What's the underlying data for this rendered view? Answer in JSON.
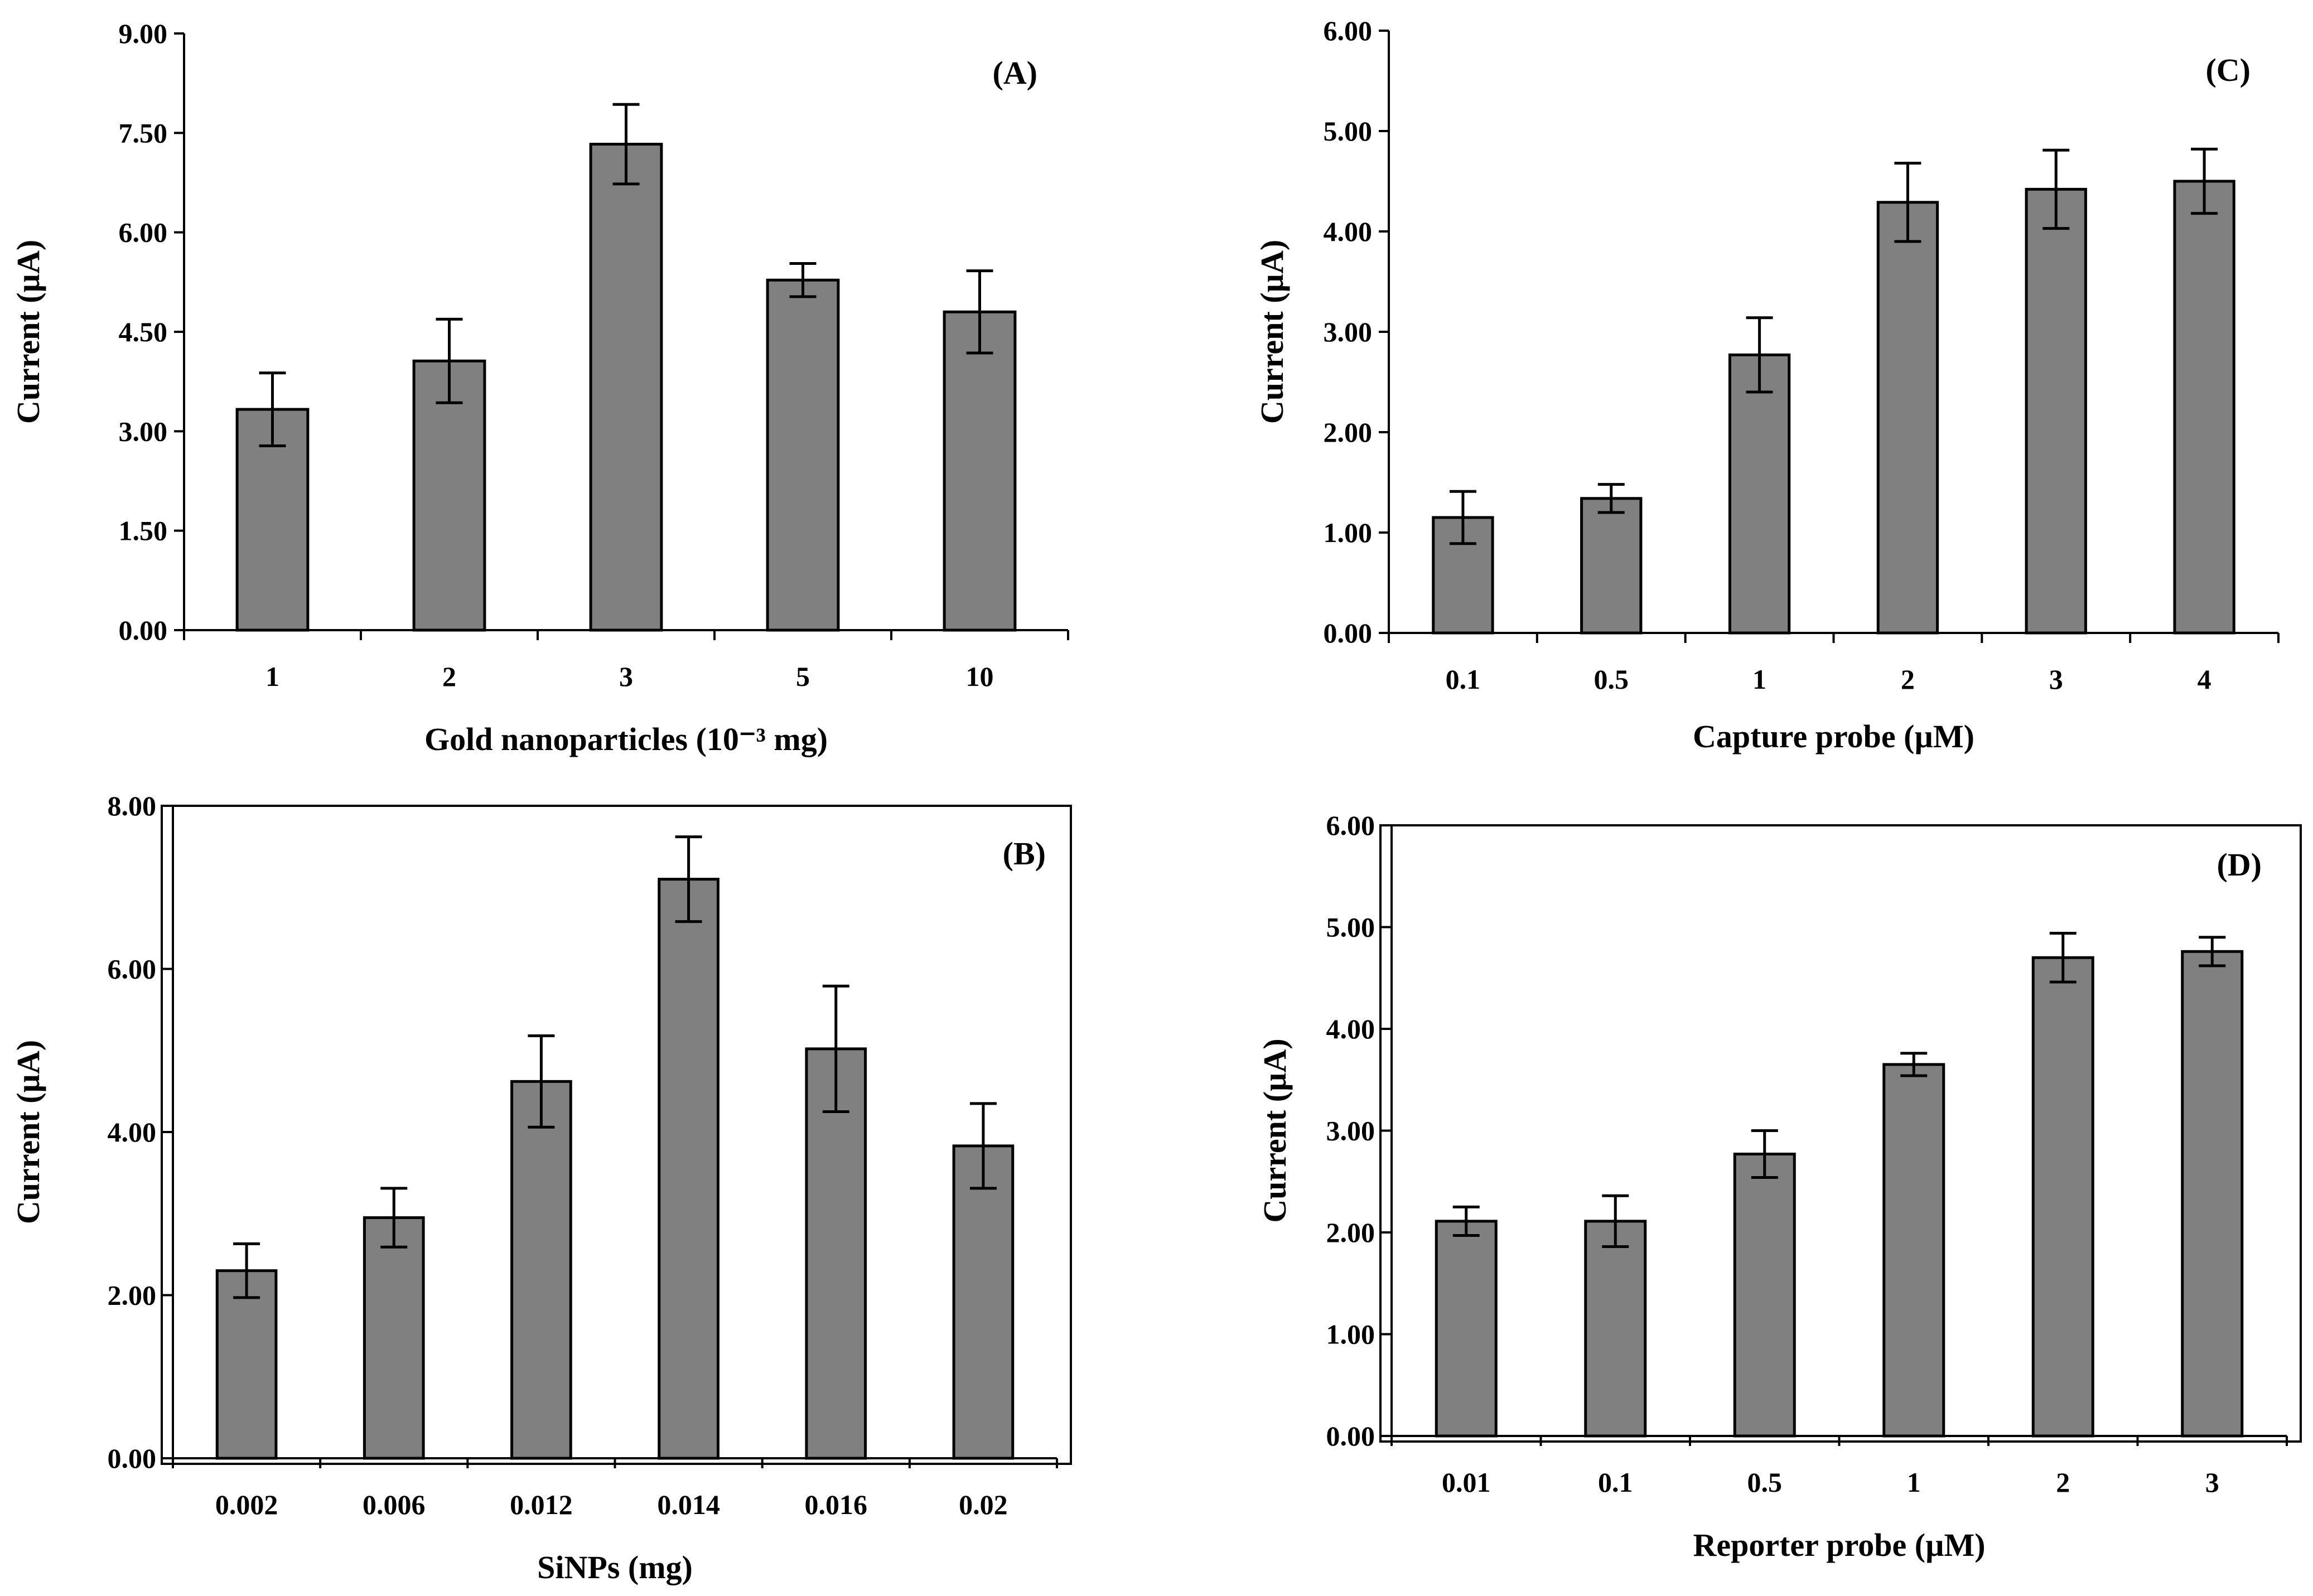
{
  "chart_data": [
    {
      "id": "A",
      "type": "bar",
      "panel_label": "(A)",
      "categories": [
        "1",
        "2",
        "3",
        "5",
        "10"
      ],
      "values": [
        3.33,
        4.06,
        7.33,
        5.28,
        4.8
      ],
      "errors": [
        0.55,
        0.63,
        0.6,
        0.25,
        0.62
      ],
      "xlabel": "Gold nanoparticles (10⁻³ mg)",
      "ylabel": "Current (µA)",
      "ylim": [
        0,
        9
      ],
      "yticks": [
        "0.00",
        "1.50",
        "3.00",
        "4.50",
        "6.00",
        "7.50",
        "9.00"
      ],
      "legend": "none",
      "grid": false
    },
    {
      "id": "B",
      "type": "bar",
      "panel_label": "(B)",
      "categories": [
        "0.002",
        "0.006",
        "0.012",
        "0.014",
        "0.016",
        "0.02"
      ],
      "values": [
        2.3,
        2.95,
        4.62,
        7.1,
        5.02,
        3.83
      ],
      "errors": [
        0.33,
        0.36,
        0.56,
        0.52,
        0.77,
        0.52
      ],
      "xlabel": "SiNPs (mg)",
      "ylabel": "Current (µA)",
      "ylim": [
        0,
        8
      ],
      "yticks": [
        "0.00",
        "2.00",
        "4.00",
        "6.00",
        "8.00"
      ],
      "legend": "none",
      "grid": false
    },
    {
      "id": "C",
      "type": "bar",
      "panel_label": "(C)",
      "categories": [
        "0.1",
        "0.5",
        "1",
        "2",
        "3",
        "4"
      ],
      "values": [
        1.15,
        1.34,
        2.77,
        4.29,
        4.42,
        4.5
      ],
      "errors": [
        0.26,
        0.14,
        0.37,
        0.39,
        0.39,
        0.32
      ],
      "xlabel": "Capture probe (µM)",
      "ylabel": "Current (µA)",
      "ylim": [
        0,
        6
      ],
      "yticks": [
        "0.00",
        "1.00",
        "2.00",
        "3.00",
        "4.00",
        "5.00",
        "6.00"
      ],
      "legend": "none",
      "grid": false
    },
    {
      "id": "D",
      "type": "bar",
      "panel_label": "(D)",
      "categories": [
        "0.01",
        "0.1",
        "0.5",
        "1",
        "2",
        "3"
      ],
      "values": [
        2.11,
        2.11,
        2.77,
        3.65,
        4.7,
        4.76
      ],
      "errors": [
        0.14,
        0.25,
        0.23,
        0.11,
        0.24,
        0.14
      ],
      "xlabel": "Reporter probe (µM)",
      "ylabel": "Current (µA)",
      "ylim": [
        0,
        6
      ],
      "yticks": [
        "0.00",
        "1.00",
        "2.00",
        "3.00",
        "4.00",
        "5.00",
        "6.00"
      ],
      "legend": "none",
      "grid": false
    }
  ]
}
